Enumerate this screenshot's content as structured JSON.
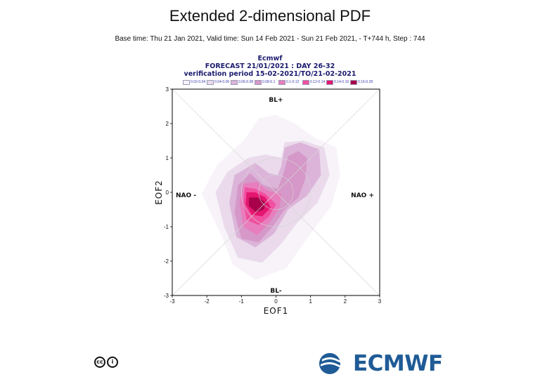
{
  "header": {
    "title": "Extended 2-dimensional PDF",
    "subtitle": "Base time: Thu 21 Jan 2021, Valid time: Sun 14 Feb 2021 - Sun 21 Feb 2021, - T+744 h, Step : 744"
  },
  "plot_header": {
    "line1": "Ecmwf",
    "line2": "FORECAST 21/01/2021 : DAY 26-32",
    "line3": "verification period 15-02-2021/TO/21-02-2021"
  },
  "legend": [
    {
      "label": "0.02-0.04",
      "color": "#f7f3f9"
    },
    {
      "label": "0.04-0.06",
      "color": "#eadaeb"
    },
    {
      "label": "0.06-0.08",
      "color": "#dcb4d9"
    },
    {
      "label": "0.08-0.1",
      "color": "#d598c8"
    },
    {
      "label": "0.1-0.12",
      "color": "#e87ebd"
    },
    {
      "label": "0.12-0.14",
      "color": "#f0509f"
    },
    {
      "label": "0.14-0.16",
      "color": "#e31670"
    },
    {
      "label": "0.16-0.28",
      "color": "#a8004a"
    }
  ],
  "regimes": {
    "top": "BL+",
    "bottom": "BL-",
    "left": "NAO -",
    "right": "NAO +"
  },
  "chart_data": {
    "type": "heatmap",
    "title": "Extended 2-dimensional PDF",
    "xlabel": "EOF1",
    "ylabel": "EOF2",
    "xlim": [
      -3,
      3
    ],
    "ylim": [
      -3,
      3
    ],
    "xticks": [
      "-3",
      "-2",
      "-1",
      "0",
      "1",
      "2",
      "3"
    ],
    "yticks": [
      "-3",
      "-2",
      "-1",
      "0",
      "1",
      "2",
      "3"
    ],
    "grid": false,
    "legend_position": "top",
    "levels": [
      {
        "label": "0.02-0.04",
        "color": "#f7f3f9",
        "polygon": [
          [
            0.0,
            2.25
          ],
          [
            -0.5,
            2.15
          ],
          [
            -0.9,
            1.55
          ],
          [
            -1.7,
            0.8
          ],
          [
            -2.15,
            -0.05
          ],
          [
            -1.6,
            -1.2
          ],
          [
            -1.25,
            -2.1
          ],
          [
            -0.6,
            -2.55
          ],
          [
            0.3,
            -2.2
          ],
          [
            1.0,
            -1.2
          ],
          [
            1.6,
            -0.4
          ],
          [
            1.85,
            0.5
          ],
          [
            1.75,
            1.3
          ],
          [
            1.1,
            1.6
          ],
          [
            0.55,
            2.0
          ]
        ]
      },
      {
        "label": "0.04-0.06",
        "color": "#eadaeb",
        "polygon": [
          [
            -0.3,
            1.1
          ],
          [
            -0.8,
            1.0
          ],
          [
            -1.4,
            0.6
          ],
          [
            -1.75,
            0.0
          ],
          [
            -1.5,
            -1.0
          ],
          [
            -1.1,
            -1.9
          ],
          [
            -0.4,
            -2.05
          ],
          [
            0.15,
            -1.5
          ],
          [
            0.6,
            -0.9
          ],
          [
            1.2,
            -0.3
          ],
          [
            1.55,
            0.5
          ],
          [
            1.4,
            1.3
          ],
          [
            0.8,
            1.5
          ],
          [
            0.25,
            1.45
          ],
          [
            0.15,
            1.0
          ]
        ]
      },
      {
        "label": "0.06-0.08",
        "color": "#dcb4d9",
        "polygon": [
          [
            -0.6,
            0.85
          ],
          [
            -1.2,
            0.5
          ],
          [
            -1.35,
            -0.3
          ],
          [
            -1.15,
            -1.3
          ],
          [
            -0.6,
            -1.6
          ],
          [
            -0.05,
            -1.2
          ],
          [
            0.35,
            -0.5
          ],
          [
            0.9,
            -0.1
          ],
          [
            1.3,
            0.5
          ],
          [
            1.25,
            1.25
          ],
          [
            0.7,
            1.45
          ],
          [
            0.25,
            1.3
          ],
          [
            0.15,
            0.75
          ],
          [
            0.05,
            0.5
          ],
          [
            -0.2,
            0.55
          ]
        ]
      },
      {
        "label": "0.08-0.1",
        "color": "#d598c8",
        "polygon": [
          [
            -0.75,
            0.55
          ],
          [
            -1.1,
            0.2
          ],
          [
            -1.2,
            -0.6
          ],
          [
            -1.0,
            -1.35
          ],
          [
            -0.5,
            -1.45
          ],
          [
            -0.1,
            -1.0
          ],
          [
            0.25,
            -0.5
          ],
          [
            0.65,
            -0.15
          ],
          [
            0.85,
            0.4
          ],
          [
            0.9,
            1.0
          ],
          [
            0.65,
            1.2
          ],
          [
            0.35,
            1.05
          ],
          [
            0.25,
            0.65
          ],
          [
            0.05,
            0.1
          ],
          [
            -0.35,
            0.2
          ]
        ]
      },
      {
        "label": "0.1-0.12",
        "color": "#e87ebd",
        "polygon": [
          [
            -0.95,
            0.25
          ],
          [
            -1.05,
            -0.3
          ],
          [
            -0.95,
            -1.0
          ],
          [
            -0.55,
            -1.25
          ],
          [
            -0.2,
            -0.9
          ],
          [
            0.1,
            -0.45
          ],
          [
            0.15,
            -0.05
          ],
          [
            -0.25,
            0.05
          ],
          [
            -0.55,
            0.3
          ]
        ]
      },
      {
        "label": "0.12-0.14",
        "color": "#f0509f",
        "polygon": [
          [
            -0.9,
            0.15
          ],
          [
            -0.95,
            -0.3
          ],
          [
            -0.85,
            -0.8
          ],
          [
            -0.5,
            -0.95
          ],
          [
            -0.2,
            -0.7
          ],
          [
            0.0,
            -0.35
          ],
          [
            -0.3,
            -0.05
          ],
          [
            -0.6,
            0.1
          ]
        ]
      },
      {
        "label": "0.14-0.16",
        "color": "#e31670",
        "polygon": [
          [
            -0.85,
            0.0
          ],
          [
            -0.88,
            -0.35
          ],
          [
            -0.7,
            -0.65
          ],
          [
            -0.4,
            -0.7
          ],
          [
            -0.15,
            -0.45
          ],
          [
            -0.3,
            -0.15
          ],
          [
            -0.6,
            0.0
          ]
        ]
      },
      {
        "label": "0.16-0.28",
        "color": "#a8004a",
        "polygon": [
          [
            -0.78,
            -0.15
          ],
          [
            -0.78,
            -0.4
          ],
          [
            -0.58,
            -0.58
          ],
          [
            -0.35,
            -0.5
          ],
          [
            -0.3,
            -0.3
          ],
          [
            -0.5,
            -0.15
          ]
        ]
      }
    ]
  },
  "branding": {
    "cc_label": "cc",
    "by_label": "i",
    "org": "ECMWF"
  }
}
